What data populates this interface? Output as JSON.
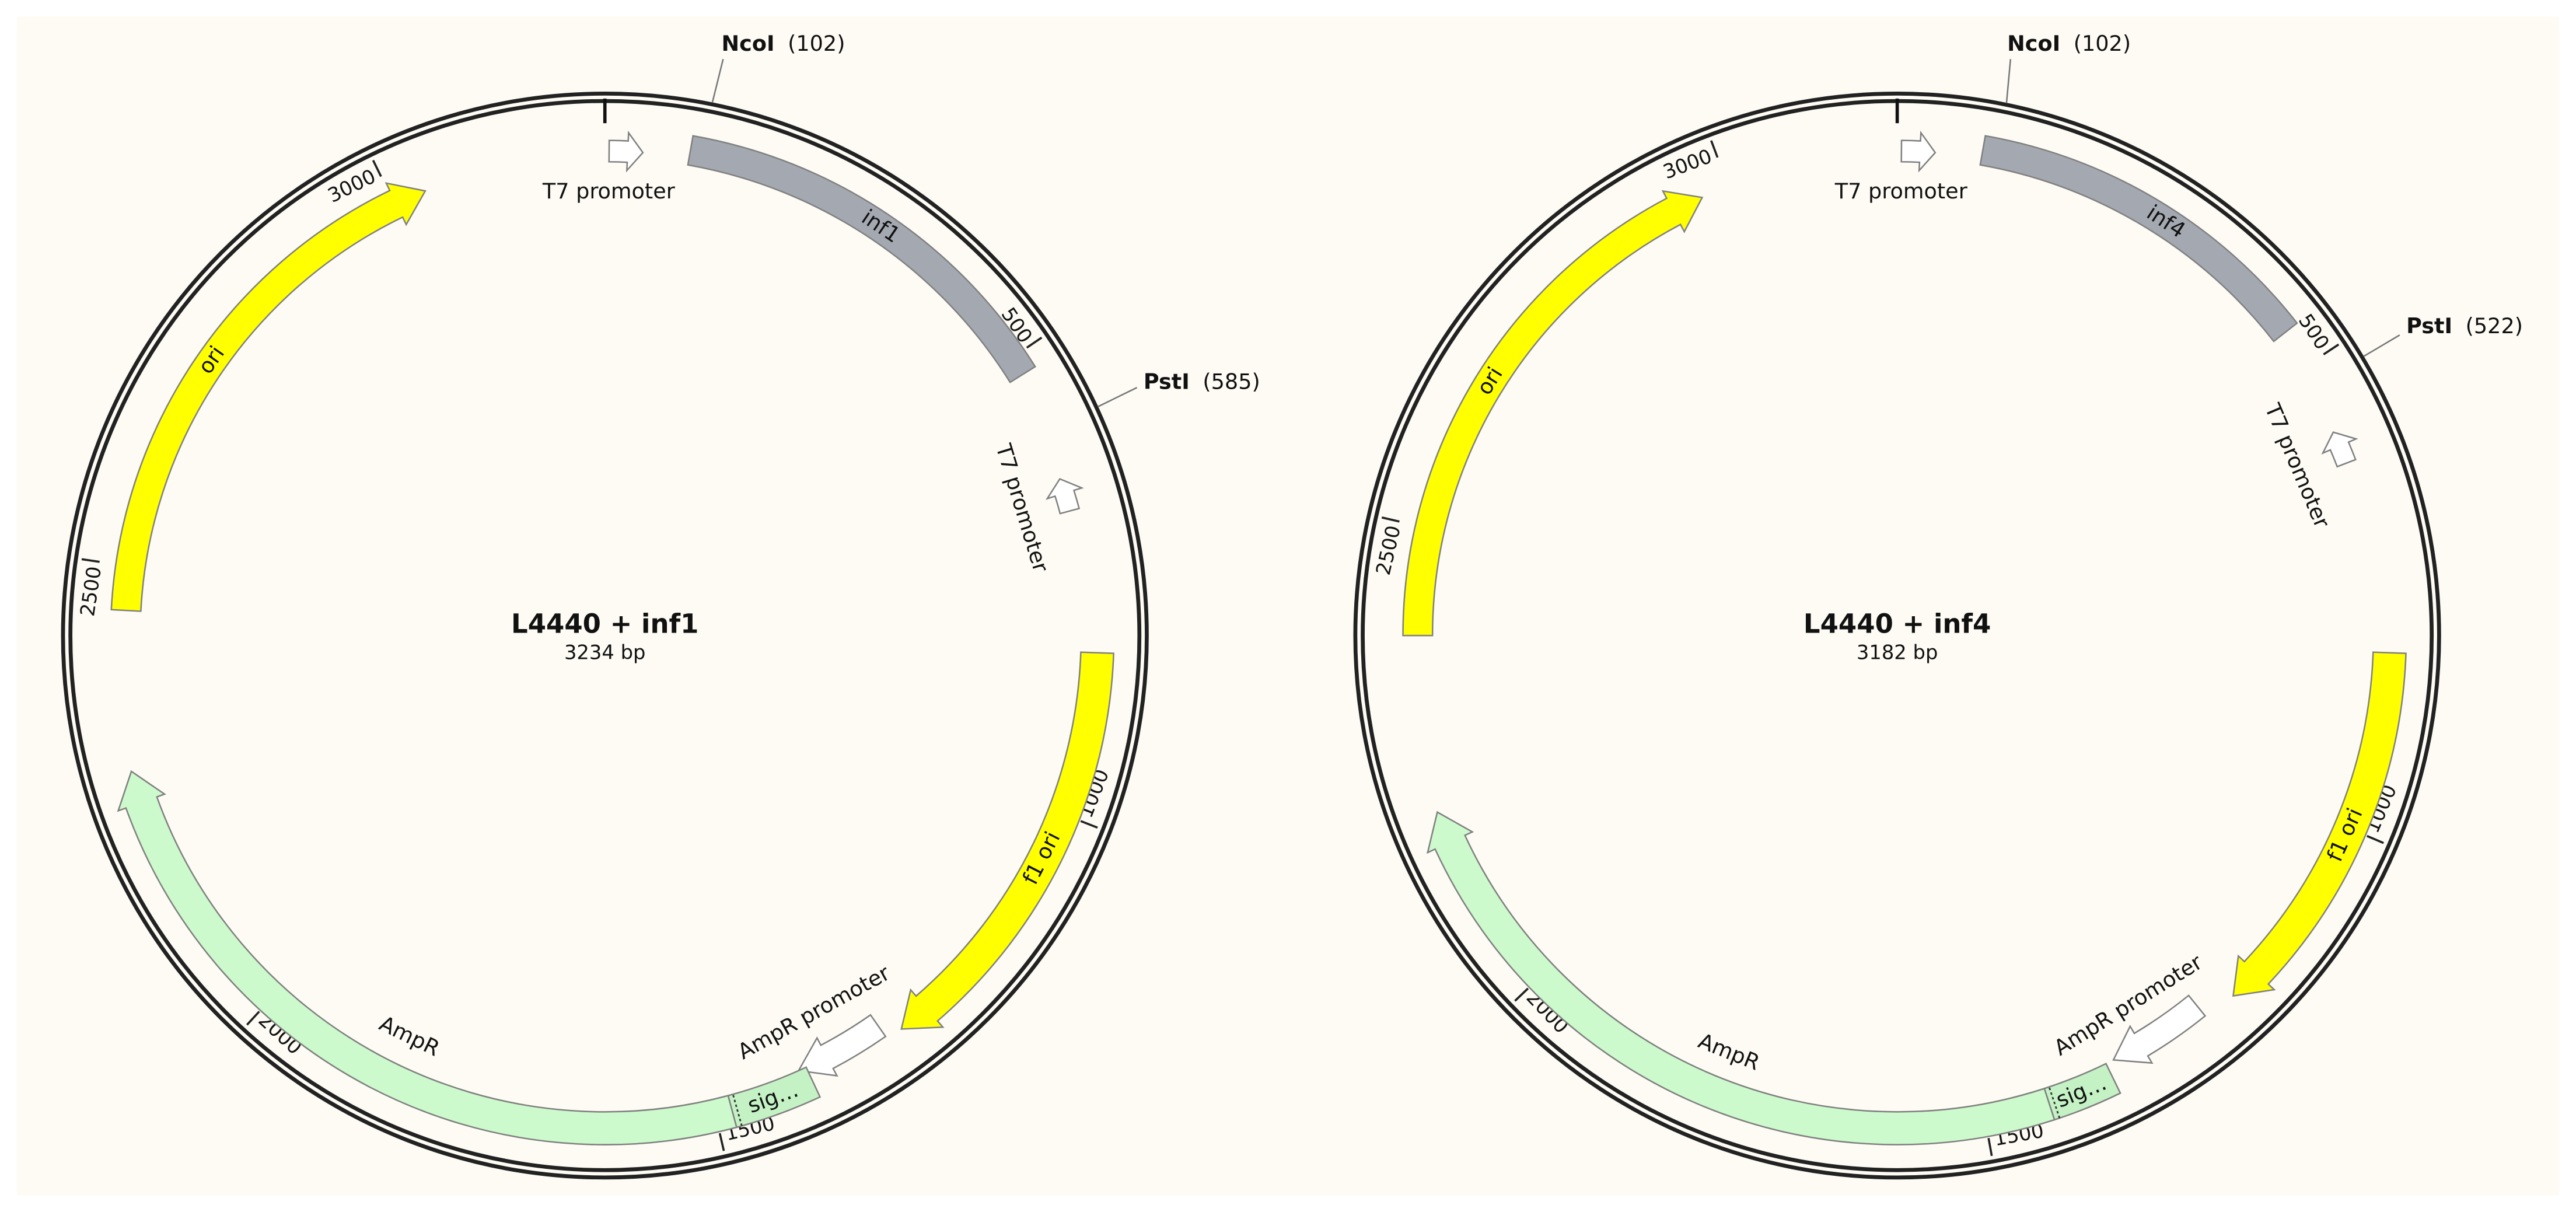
{
  "maps": [
    {
      "name": "L4440 + inf1",
      "size": "3234 bp",
      "sites": [
        {
          "name": "NcoI",
          "position": "(102)"
        },
        {
          "name": "PstI",
          "position": "(585)"
        }
      ],
      "ticks": [
        500,
        1000,
        1500,
        2000,
        2500,
        3000
      ],
      "features": [
        {
          "label": "T7 promoter"
        },
        {
          "label": "inf1"
        },
        {
          "label": "T7 promoter"
        },
        {
          "label": "f1 ori"
        },
        {
          "label": "AmpR promoter"
        },
        {
          "label": "AmpR"
        },
        {
          "label": "sig…"
        },
        {
          "label": "ori"
        }
      ]
    },
    {
      "name": "L4440 + inf4",
      "size": "3182 bp",
      "sites": [
        {
          "name": "NcoI",
          "position": "(102)"
        },
        {
          "name": "PstI",
          "position": "(522)"
        }
      ],
      "ticks": [
        500,
        1000,
        1500,
        2000,
        2500,
        3000
      ],
      "features": [
        {
          "label": "T7 promoter"
        },
        {
          "label": "inf4"
        },
        {
          "label": "T7 promoter"
        },
        {
          "label": "f1 ori"
        },
        {
          "label": "AmpR promoter"
        },
        {
          "label": "AmpR"
        },
        {
          "label": "sig…"
        },
        {
          "label": "ori"
        }
      ]
    }
  ]
}
